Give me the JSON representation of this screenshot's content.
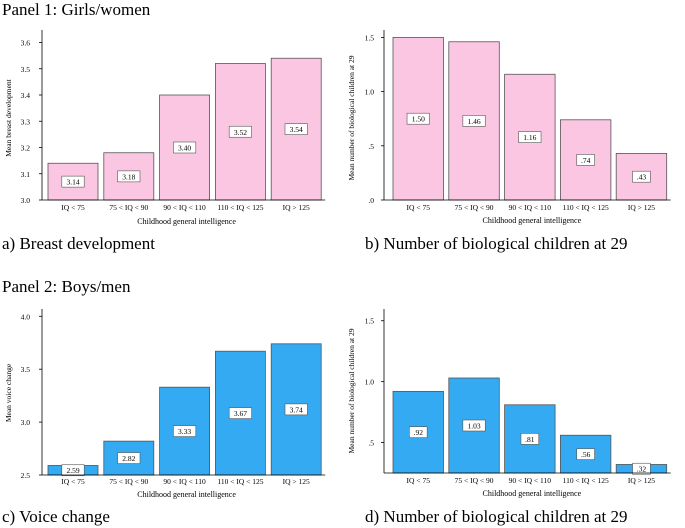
{
  "panel1": {
    "title": "Panel 1: Girls/women"
  },
  "panel2": {
    "title": "Panel 2: Boys/men"
  },
  "chart_data": [
    {
      "id": "a",
      "type": "bar",
      "caption": "a) Breast development",
      "xlabel": "Childhood general intelligence",
      "ylabel": "Mean breast development",
      "categories": [
        "IQ < 75",
        "75 < IQ < 90",
        "90 < IQ < 110",
        "110 < IQ < 125",
        "IQ > 125"
      ],
      "values": [
        3.14,
        3.18,
        3.4,
        3.52,
        3.54
      ],
      "value_labels": [
        "3.14",
        "3.18",
        "3.40",
        "3.52",
        "3.54"
      ],
      "ylim": [
        3.0,
        3.64
      ],
      "yticks": [
        3.0,
        3.1,
        3.2,
        3.3,
        3.4,
        3.5,
        3.6
      ],
      "ytick_labels": [
        "3.0",
        "3.1",
        "3.2",
        "3.3",
        "3.4",
        "3.5",
        "3.6"
      ],
      "bar_color": "#fbc6e2",
      "grid": false
    },
    {
      "id": "b",
      "type": "bar",
      "caption": "b) Number of biological children at 29",
      "xlabel": "Childhood general intelligence",
      "ylabel": "Mean number of biological children at 29",
      "categories": [
        "IQ < 75",
        "75 < IQ < 90",
        "90 < IQ < 110",
        "110 < IQ < 125",
        "IQ > 125"
      ],
      "values": [
        1.5,
        1.46,
        1.16,
        0.74,
        0.43
      ],
      "value_labels": [
        "1.50",
        "1.46",
        "1.16",
        ".74",
        ".43"
      ],
      "ylim": [
        0,
        1.55
      ],
      "yticks": [
        0,
        0.5,
        1.0,
        1.5
      ],
      "ytick_labels": [
        ".0",
        ".5",
        "1.0",
        "1.5"
      ],
      "bar_color": "#fbc6e2",
      "grid": false
    },
    {
      "id": "c",
      "type": "bar",
      "caption": "c) Voice change",
      "xlabel": "Childhood general intelligence",
      "ylabel": "Mean voice change",
      "categories": [
        "IQ < 75",
        "75 < IQ < 90",
        "90 < IQ < 110",
        "110 < IQ < 125",
        "IQ > 125"
      ],
      "values": [
        2.59,
        2.82,
        3.33,
        3.67,
        3.74
      ],
      "value_labels": [
        "2.59",
        "2.82",
        "3.33",
        "3.67",
        "3.74"
      ],
      "ylim": [
        2.5,
        4.05
      ],
      "yticks": [
        2.5,
        3.0,
        3.5,
        4.0
      ],
      "ytick_labels": [
        "2.5",
        "3.0",
        "3.5",
        "4.0"
      ],
      "bar_color": "#33aaf2",
      "grid": false
    },
    {
      "id": "d",
      "type": "bar",
      "caption": "d) Number of biological children at 29",
      "xlabel": "Childhood general intelligence",
      "ylabel": "Mean number of biological children at 29",
      "categories": [
        "IQ < 75",
        "75 < IQ < 90",
        "90 < IQ < 110",
        "110 < IQ < 125",
        "IQ > 125"
      ],
      "values": [
        0.92,
        1.03,
        0.81,
        0.56,
        0.32
      ],
      "value_labels": [
        ".92",
        "1.03",
        ".81",
        ".56",
        ".32"
      ],
      "ylim": [
        0.25,
        1.58
      ],
      "yticks": [
        0.5,
        1.0,
        1.5
      ],
      "ytick_labels": [
        ".5",
        "1.0",
        "1.5"
      ],
      "bar_color": "#33aaf2",
      "grid": false
    }
  ]
}
